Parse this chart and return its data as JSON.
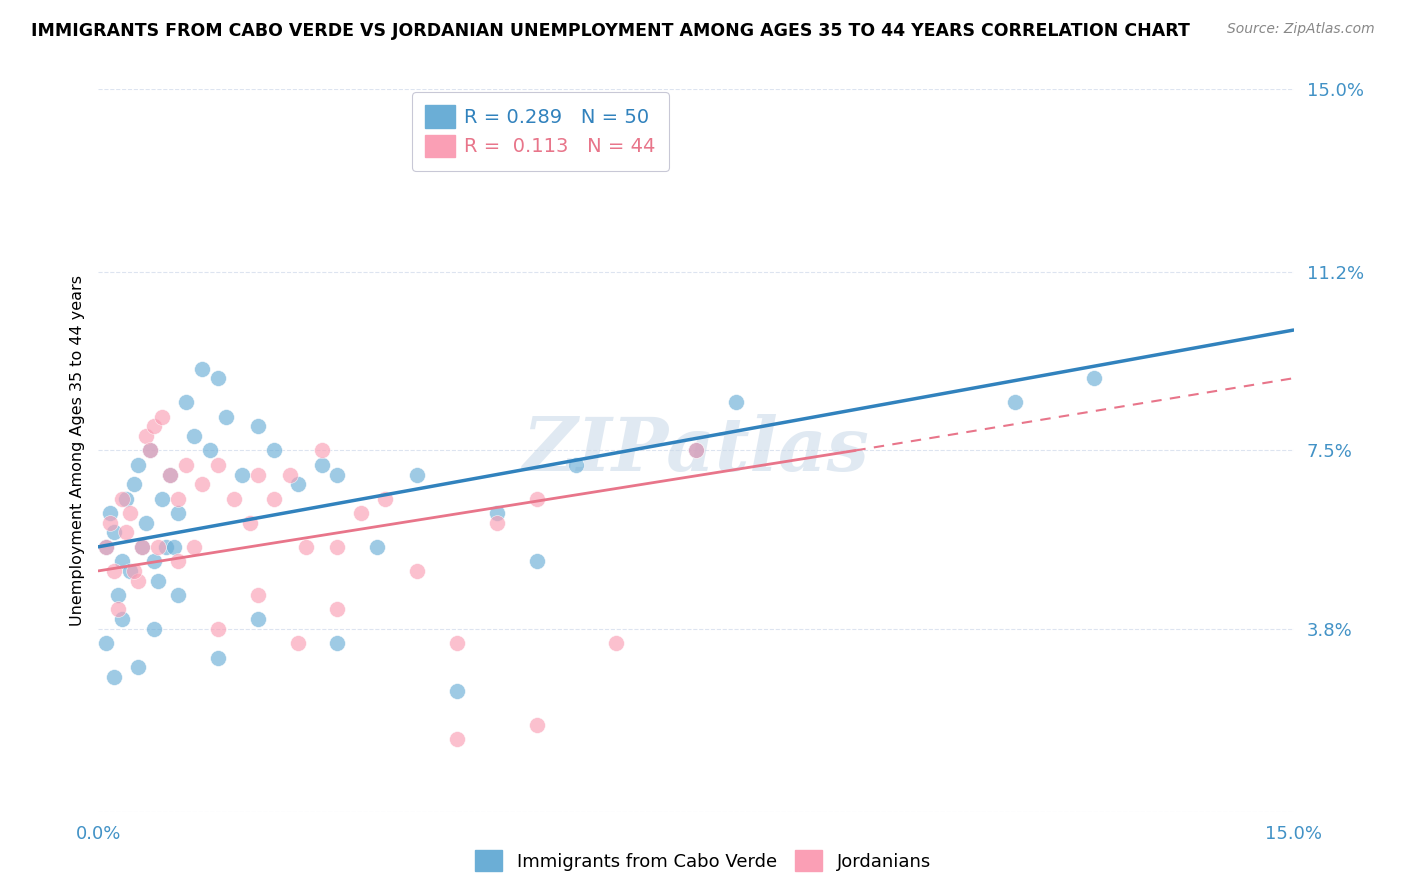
{
  "title": "IMMIGRANTS FROM CABO VERDE VS JORDANIAN UNEMPLOYMENT AMONG AGES 35 TO 44 YEARS CORRELATION CHART",
  "source": "Source: ZipAtlas.com",
  "ylabel": "Unemployment Among Ages 35 to 44 years",
  "xlim": [
    0,
    15
  ],
  "ylim": [
    0,
    15
  ],
  "yticks": [
    0,
    3.8,
    7.5,
    11.2,
    15.0
  ],
  "xticks": [
    0,
    3.75,
    7.5,
    11.25,
    15.0
  ],
  "xtick_labels": [
    "0.0%",
    "",
    "",
    "",
    "15.0%"
  ],
  "ytick_labels": [
    "",
    "3.8%",
    "7.5%",
    "11.2%",
    "15.0%"
  ],
  "legend_r1": "R = 0.289",
  "legend_n1": "N = 50",
  "legend_r2": "R =  0.113",
  "legend_n2": "N = 44",
  "blue_color": "#6baed6",
  "pink_color": "#fa9fb5",
  "blue_line_color": "#3182bd",
  "pink_line_color": "#e8758a",
  "text_color": "#4292c6",
  "grid_color": "#dde4f0",
  "watermark": "ZIPatlas",
  "blue_scatter_x": [
    0.1,
    0.15,
    0.2,
    0.25,
    0.3,
    0.35,
    0.4,
    0.45,
    0.5,
    0.55,
    0.6,
    0.65,
    0.7,
    0.75,
    0.8,
    0.85,
    0.9,
    0.95,
    1.0,
    1.1,
    1.2,
    1.3,
    1.4,
    1.5,
    1.6,
    1.8,
    2.0,
    2.2,
    2.5,
    2.8,
    3.0,
    3.5,
    4.0,
    5.0,
    5.5,
    6.0,
    7.5,
    8.0,
    11.5,
    12.5,
    0.1,
    0.2,
    0.3,
    0.5,
    0.7,
    1.0,
    1.5,
    2.0,
    3.0,
    4.5
  ],
  "blue_scatter_y": [
    5.5,
    6.2,
    5.8,
    4.5,
    5.2,
    6.5,
    5.0,
    6.8,
    7.2,
    5.5,
    6.0,
    7.5,
    5.2,
    4.8,
    6.5,
    5.5,
    7.0,
    5.5,
    6.2,
    8.5,
    7.8,
    9.2,
    7.5,
    9.0,
    8.2,
    7.0,
    8.0,
    7.5,
    6.8,
    7.2,
    7.0,
    5.5,
    7.0,
    6.2,
    5.2,
    7.2,
    7.5,
    8.5,
    8.5,
    9.0,
    3.5,
    2.8,
    4.0,
    3.0,
    3.8,
    4.5,
    3.2,
    4.0,
    3.5,
    2.5
  ],
  "pink_scatter_x": [
    0.1,
    0.15,
    0.2,
    0.3,
    0.35,
    0.4,
    0.5,
    0.55,
    0.6,
    0.65,
    0.7,
    0.8,
    0.9,
    1.0,
    1.1,
    1.2,
    1.3,
    1.5,
    1.7,
    1.9,
    2.0,
    2.2,
    2.4,
    2.6,
    2.8,
    3.0,
    3.3,
    3.6,
    4.0,
    4.5,
    5.0,
    5.5,
    6.5,
    7.5,
    0.25,
    0.45,
    0.75,
    1.0,
    1.5,
    2.0,
    2.5,
    3.0,
    4.5,
    5.5
  ],
  "pink_scatter_y": [
    5.5,
    6.0,
    5.0,
    6.5,
    5.8,
    6.2,
    4.8,
    5.5,
    7.8,
    7.5,
    8.0,
    8.2,
    7.0,
    6.5,
    7.2,
    5.5,
    6.8,
    7.2,
    6.5,
    6.0,
    7.0,
    6.5,
    7.0,
    5.5,
    7.5,
    5.5,
    6.2,
    6.5,
    5.0,
    3.5,
    6.0,
    6.5,
    3.5,
    7.5,
    4.2,
    5.0,
    5.5,
    5.2,
    3.8,
    4.5,
    3.5,
    4.2,
    1.5,
    1.8
  ],
  "blue_line_x0": 0,
  "blue_line_y0": 5.5,
  "blue_line_x1": 15,
  "blue_line_y1": 10.0,
  "pink_line_x0": 0,
  "pink_line_y0": 5.0,
  "pink_line_x1": 9.5,
  "pink_line_y1": 7.5,
  "pink_dashed_x0": 9.5,
  "pink_dashed_y0": 7.5,
  "pink_dashed_x1": 15,
  "pink_dashed_y1": 9.0
}
